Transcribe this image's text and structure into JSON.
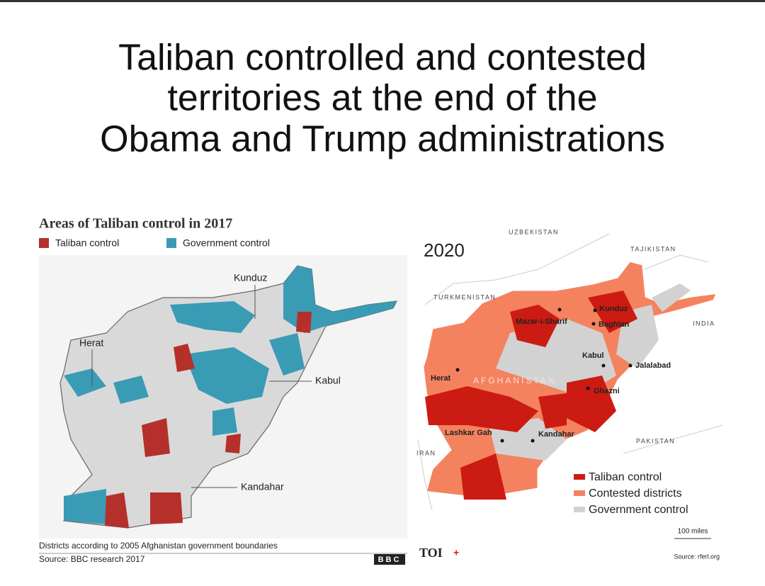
{
  "title": {
    "lines": [
      "Taliban controlled and contested",
      "territories at the end of the",
      "Obama and Trump administrations"
    ]
  },
  "map_2017": {
    "title": "Areas of Taliban control in 2017",
    "legend": [
      "Taliban control",
      "Government control"
    ],
    "labels": [
      "Kunduz",
      "Herat",
      "Kabul",
      "Kandahar"
    ],
    "note": "Districts according to 2005 Afghanistan government boundaries",
    "source": "Source: BBC research 2017",
    "logo": "BBC"
  },
  "map_2020": {
    "year": "2020",
    "countries": [
      "UZBEKISTAN",
      "TAJIKISTAN",
      "TURKMENISTAN",
      "INDIA",
      "IRAN",
      "PAKISTAN",
      "AFGHANISTAN"
    ],
    "cities": [
      "Kunduz",
      "Mazar-i-Sharif",
      "Baghlan",
      "Kabul",
      "Jalalabad",
      "Herat",
      "Ghazni",
      "Lashkar Gah",
      "Kandahar"
    ],
    "legend": [
      "Taliban control",
      "Contested districts",
      "Government control"
    ],
    "scale": "100 miles",
    "source": "Source: rferl.org"
  },
  "footer": {
    "logo": "TOI"
  }
}
